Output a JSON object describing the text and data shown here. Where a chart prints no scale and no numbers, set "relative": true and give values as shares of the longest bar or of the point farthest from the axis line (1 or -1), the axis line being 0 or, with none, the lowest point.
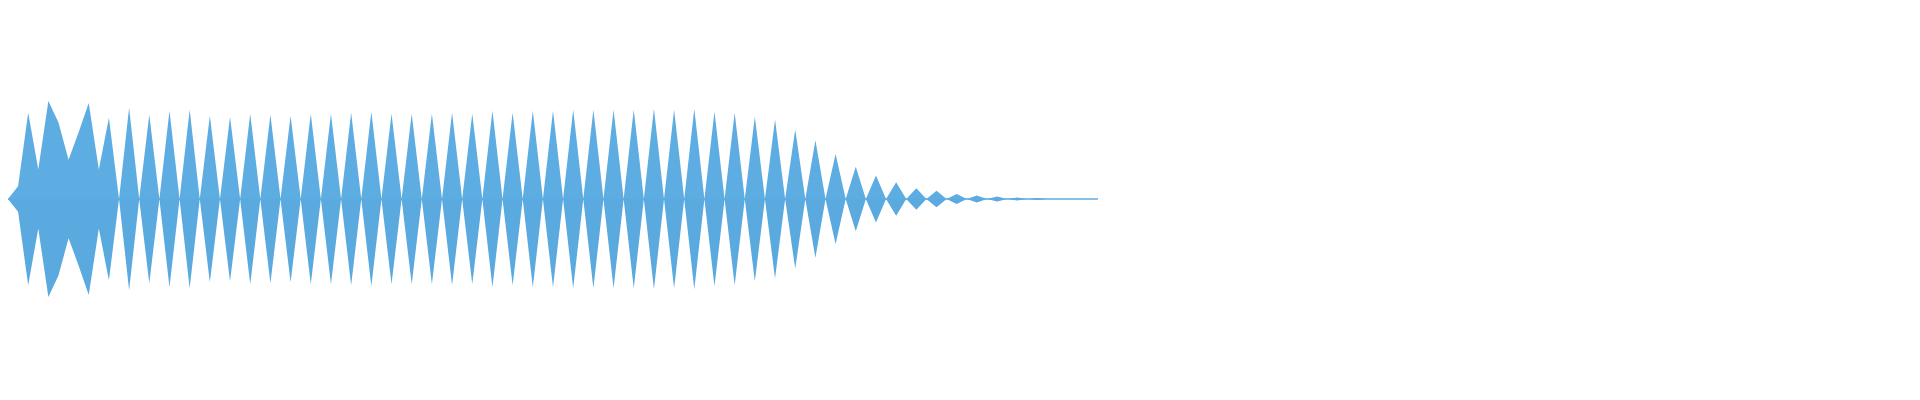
{
  "chart_data": {
    "type": "area",
    "relative": true,
    "categories": [
      null,
      null,
      null,
      null,
      null,
      null,
      null,
      null,
      null,
      null,
      null,
      null,
      null,
      null,
      null,
      null,
      null,
      null,
      null,
      null,
      null,
      null,
      null,
      null,
      null,
      null,
      null,
      null,
      null,
      null,
      null,
      null,
      null,
      null,
      null,
      null,
      null,
      null,
      null,
      null,
      null,
      null,
      null,
      null,
      null,
      null,
      null,
      null,
      null,
      null,
      null,
      null,
      null,
      null,
      null,
      null,
      null,
      null,
      null,
      null,
      null,
      null,
      null,
      null,
      null,
      null,
      null,
      null,
      null,
      null,
      null,
      null,
      null,
      null,
      null,
      null,
      null,
      null,
      null,
      null,
      null,
      null,
      null,
      null,
      null,
      null,
      null,
      null,
      null,
      null,
      null,
      null,
      null,
      null,
      null,
      null,
      null,
      null,
      null,
      null,
      null,
      null,
      null,
      null,
      null,
      null,
      null,
      null,
      null
    ],
    "series": [
      {
        "color": "#5dace2",
        "values": [
          0,
          0.13,
          0.88,
          0.3,
          1,
          0.78,
          0.4,
          0.68,
          0.98,
          0.3,
          0.83,
          0,
          0.93,
          0,
          0.86,
          0,
          0.9,
          0,
          0.91,
          0,
          0.85,
          0,
          0.84,
          0,
          0.87,
          0,
          0.86,
          0,
          0.85,
          0,
          0.87,
          0,
          0.87,
          0,
          0.88,
          0,
          0.89,
          0,
          0.87,
          0,
          0.87,
          0,
          0.87,
          0,
          0.88,
          0,
          0.87,
          0,
          0.9,
          0,
          0.88,
          0,
          0.9,
          0,
          0.9,
          0,
          0.91,
          0,
          0.91,
          0,
          0.91,
          0,
          0.91,
          0,
          0.92,
          0,
          0.91,
          0,
          0.92,
          0,
          0.89,
          0,
          0.88,
          0,
          0.84,
          0,
          0.81,
          0,
          0.71,
          0,
          0.6,
          0,
          0.46,
          0,
          0.33,
          0,
          0.24,
          0,
          0.17,
          0,
          0.11,
          0,
          0.085,
          0,
          0.05,
          0,
          0.035,
          0,
          0.025,
          0,
          0.015,
          0,
          0.01,
          0,
          0,
          0,
          0,
          0,
          0
        ]
      },
      {
        "color": "#5aa9df",
        "values": [
          0,
          -0.13,
          -0.88,
          -0.3,
          -1,
          -0.78,
          -0.4,
          -0.68,
          -0.98,
          -0.3,
          -0.83,
          0,
          -0.93,
          0,
          -0.86,
          0,
          -0.9,
          0,
          -0.91,
          0,
          -0.85,
          0,
          -0.84,
          0,
          -0.87,
          0,
          -0.86,
          0,
          -0.85,
          0,
          -0.87,
          0,
          -0.87,
          0,
          -0.88,
          0,
          -0.89,
          0,
          -0.87,
          0,
          -0.87,
          0,
          -0.87,
          0,
          -0.88,
          0,
          -0.87,
          0,
          -0.9,
          0,
          -0.88,
          0,
          -0.9,
          0,
          -0.9,
          0,
          -0.91,
          0,
          -0.91,
          0,
          -0.91,
          0,
          -0.91,
          0,
          -0.92,
          0,
          -0.91,
          0,
          -0.92,
          0,
          -0.89,
          0,
          -0.88,
          0,
          -0.84,
          0,
          -0.81,
          0,
          -0.71,
          0,
          -0.6,
          0,
          -0.46,
          0,
          -0.33,
          0,
          -0.24,
          0,
          -0.17,
          0,
          -0.11,
          0,
          -0.085,
          0,
          -0.05,
          0,
          -0.035,
          0,
          -0.025,
          0,
          -0.015,
          0,
          -0.01,
          0,
          0,
          0,
          0,
          0,
          0
        ]
      }
    ]
  }
}
